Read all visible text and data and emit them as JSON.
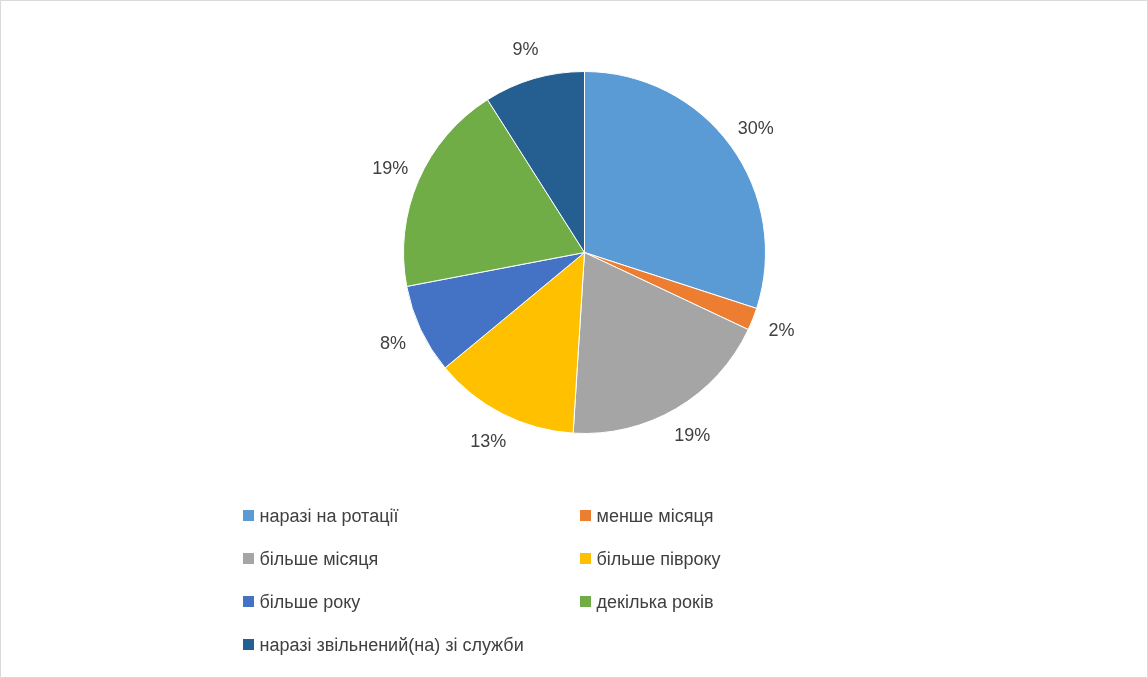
{
  "chart_data": {
    "type": "pie",
    "categories": [
      "наразі на ротації",
      "менше місяця",
      "більше місяця",
      "більше півроку",
      "більше року",
      "декілька років",
      "наразі звільнений(на) зі служби"
    ],
    "values": [
      30,
      2,
      19,
      13,
      8,
      19,
      9
    ],
    "value_labels": [
      "30%",
      "2%",
      "19%",
      "13%",
      "8%",
      "19%",
      "9%"
    ],
    "colors": [
      "#5b9bd5",
      "#ed7d31",
      "#a5a5a5",
      "#ffc000",
      "#4472c4",
      "#70ad47",
      "#255e91"
    ],
    "legend": "bottom"
  }
}
